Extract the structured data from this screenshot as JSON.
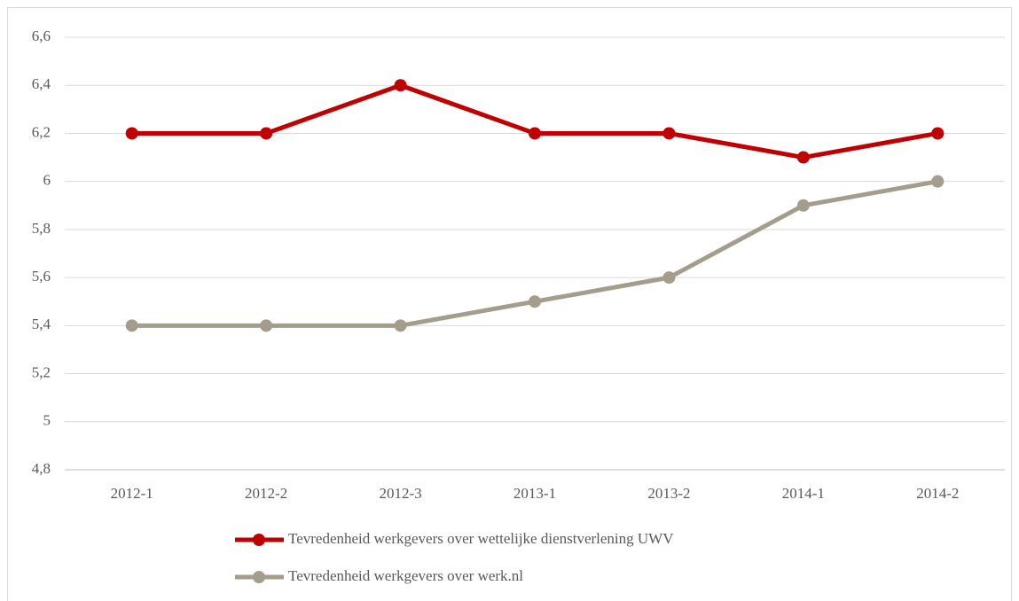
{
  "chart_data": {
    "type": "line",
    "categories": [
      "2012-1",
      "2012-2",
      "2012-3",
      "2013-1",
      "2013-2",
      "2014-1",
      "2014-2"
    ],
    "series": [
      {
        "name": "Tevredenheid werkgevers over wettelijke dienstverlening UWV",
        "color": "#c00000",
        "values": [
          6.2,
          6.2,
          6.4,
          6.2,
          6.2,
          6.1,
          6.2
        ]
      },
      {
        "name": "Tevredenheid werkgevers over werk.nl",
        "color": "#a59d8c",
        "values": [
          5.4,
          5.4,
          5.4,
          5.5,
          5.6,
          5.9,
          6.0
        ]
      }
    ],
    "ylim": [
      4.8,
      6.6
    ],
    "yticks": [
      {
        "value": 4.8,
        "label": "4,8"
      },
      5,
      {
        "value": 5.2,
        "label": "5,2"
      },
      {
        "value": 5.4,
        "label": "5,4"
      },
      {
        "value": 5.6,
        "label": "5,6"
      },
      {
        "value": 5.8,
        "label": "5,8"
      },
      6,
      {
        "value": 6.2,
        "label": "6,2"
      },
      {
        "value": 6.4,
        "label": "6,4"
      },
      {
        "value": 6.6,
        "label": "6,6"
      }
    ],
    "grid": true,
    "legend": "bottom"
  }
}
